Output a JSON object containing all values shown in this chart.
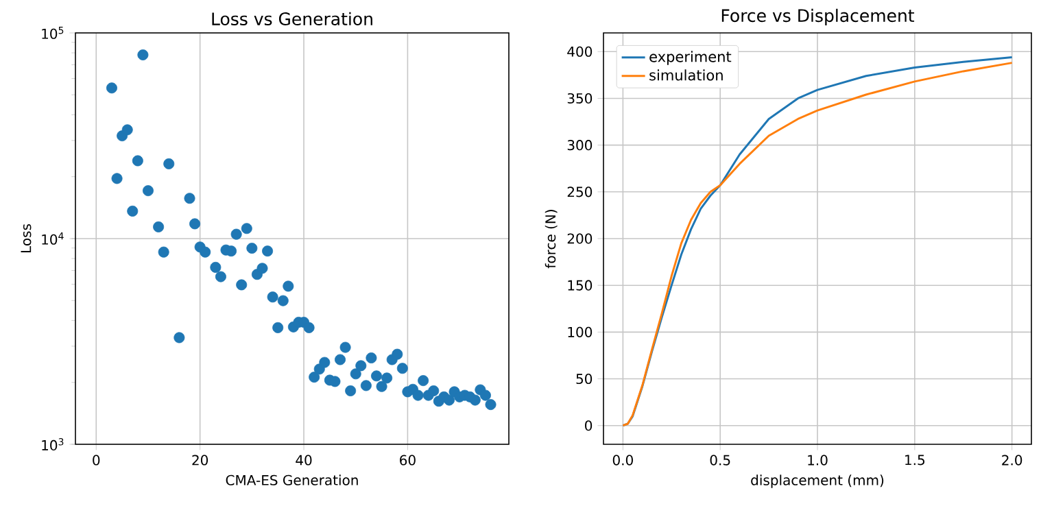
{
  "chart_data": [
    {
      "type": "scatter",
      "title": "Loss vs Generation",
      "xlabel": "CMA-ES Generation",
      "ylabel": "Loss",
      "color": "#1f77b4",
      "marker": "circle",
      "log": "y",
      "grid": true,
      "x": [
        3,
        4,
        5,
        6,
        7,
        8,
        9,
        10,
        12,
        13,
        14,
        16,
        18,
        19,
        20,
        21,
        23,
        24,
        25,
        26,
        27,
        28,
        29,
        30,
        31,
        32,
        33,
        34,
        35,
        36,
        37,
        38,
        39,
        40,
        41,
        42,
        43,
        44,
        45,
        46,
        47,
        48,
        49,
        50,
        51,
        52,
        53,
        54,
        55,
        56,
        57,
        58,
        59,
        60,
        61,
        62,
        63,
        64,
        65,
        66,
        67,
        68,
        69,
        70,
        71,
        72,
        73,
        74,
        75,
        76
      ],
      "values": [
        54000,
        19600,
        31600,
        33800,
        13600,
        23900,
        78200,
        17100,
        11400,
        8600,
        23100,
        3300,
        15700,
        11800,
        9100,
        8600,
        7250,
        6530,
        8800,
        8700,
        10500,
        5960,
        11200,
        8980,
        6700,
        7170,
        8700,
        5200,
        3690,
        4990,
        5870,
        3720,
        3920,
        3920,
        3690,
        2120,
        2320,
        2500,
        2050,
        2020,
        2580,
        2960,
        1820,
        2200,
        2410,
        1930,
        2630,
        2150,
        1910,
        2100,
        2580,
        2740,
        2340,
        1800,
        1850,
        1730,
        2040,
        1730,
        1820,
        1620,
        1700,
        1640,
        1800,
        1700,
        1730,
        1700,
        1640,
        1840,
        1730,
        1560
      ],
      "xlim": [
        -4,
        79.5
      ],
      "ylim": [
        1000,
        100000
      ],
      "xticks": [
        0,
        20,
        40,
        60
      ],
      "yticks": [
        {
          "value": 1000,
          "label": "10$^{3}$"
        },
        {
          "value": 10000,
          "label": "10$^{4}$"
        },
        {
          "value": 100000,
          "label": "10$^{5}$"
        }
      ]
    },
    {
      "type": "line",
      "title": "Force vs Displacement",
      "xlabel": "displacement (mm)",
      "ylabel": "force (N)",
      "grid": true,
      "legend": "top left",
      "marker": "none",
      "series": [
        {
          "name": "experiment",
          "color": "#1f77b4",
          "x": [
            0,
            0.025,
            0.05,
            0.1,
            0.15,
            0.2,
            0.25,
            0.3,
            0.35,
            0.4,
            0.45,
            0.5,
            0.6,
            0.75,
            0.9,
            1.0,
            1.25,
            1.5,
            1.75,
            2.0
          ],
          "values": [
            0,
            2,
            10,
            42,
            80,
            116,
            150,
            183,
            210,
            232,
            246,
            257,
            290,
            328,
            350,
            359,
            374,
            383,
            389,
            394
          ]
        },
        {
          "name": "simulation",
          "color": "#ff7f0e",
          "x": [
            0,
            0.025,
            0.05,
            0.1,
            0.15,
            0.2,
            0.25,
            0.3,
            0.35,
            0.4,
            0.45,
            0.5,
            0.6,
            0.75,
            0.9,
            1.0,
            1.25,
            1.5,
            1.75,
            2.0
          ],
          "values": [
            0,
            2,
            11,
            43,
            82,
            120,
            160,
            195,
            220,
            238,
            250,
            257,
            280,
            310,
            328,
            337,
            354,
            368,
            379,
            388
          ]
        }
      ],
      "xlim": [
        -0.1,
        2.1
      ],
      "ylim": [
        -20,
        420
      ],
      "xticks": [
        {
          "value": 0,
          "label": "0.0"
        },
        {
          "value": 0.5,
          "label": "0.5"
        },
        {
          "value": 1,
          "label": "1.0"
        },
        {
          "value": 1.5,
          "label": "1.5"
        },
        {
          "value": 2,
          "label": "2.0"
        }
      ],
      "yticks": [
        0,
        50,
        100,
        150,
        200,
        250,
        300,
        350,
        400
      ]
    }
  ]
}
